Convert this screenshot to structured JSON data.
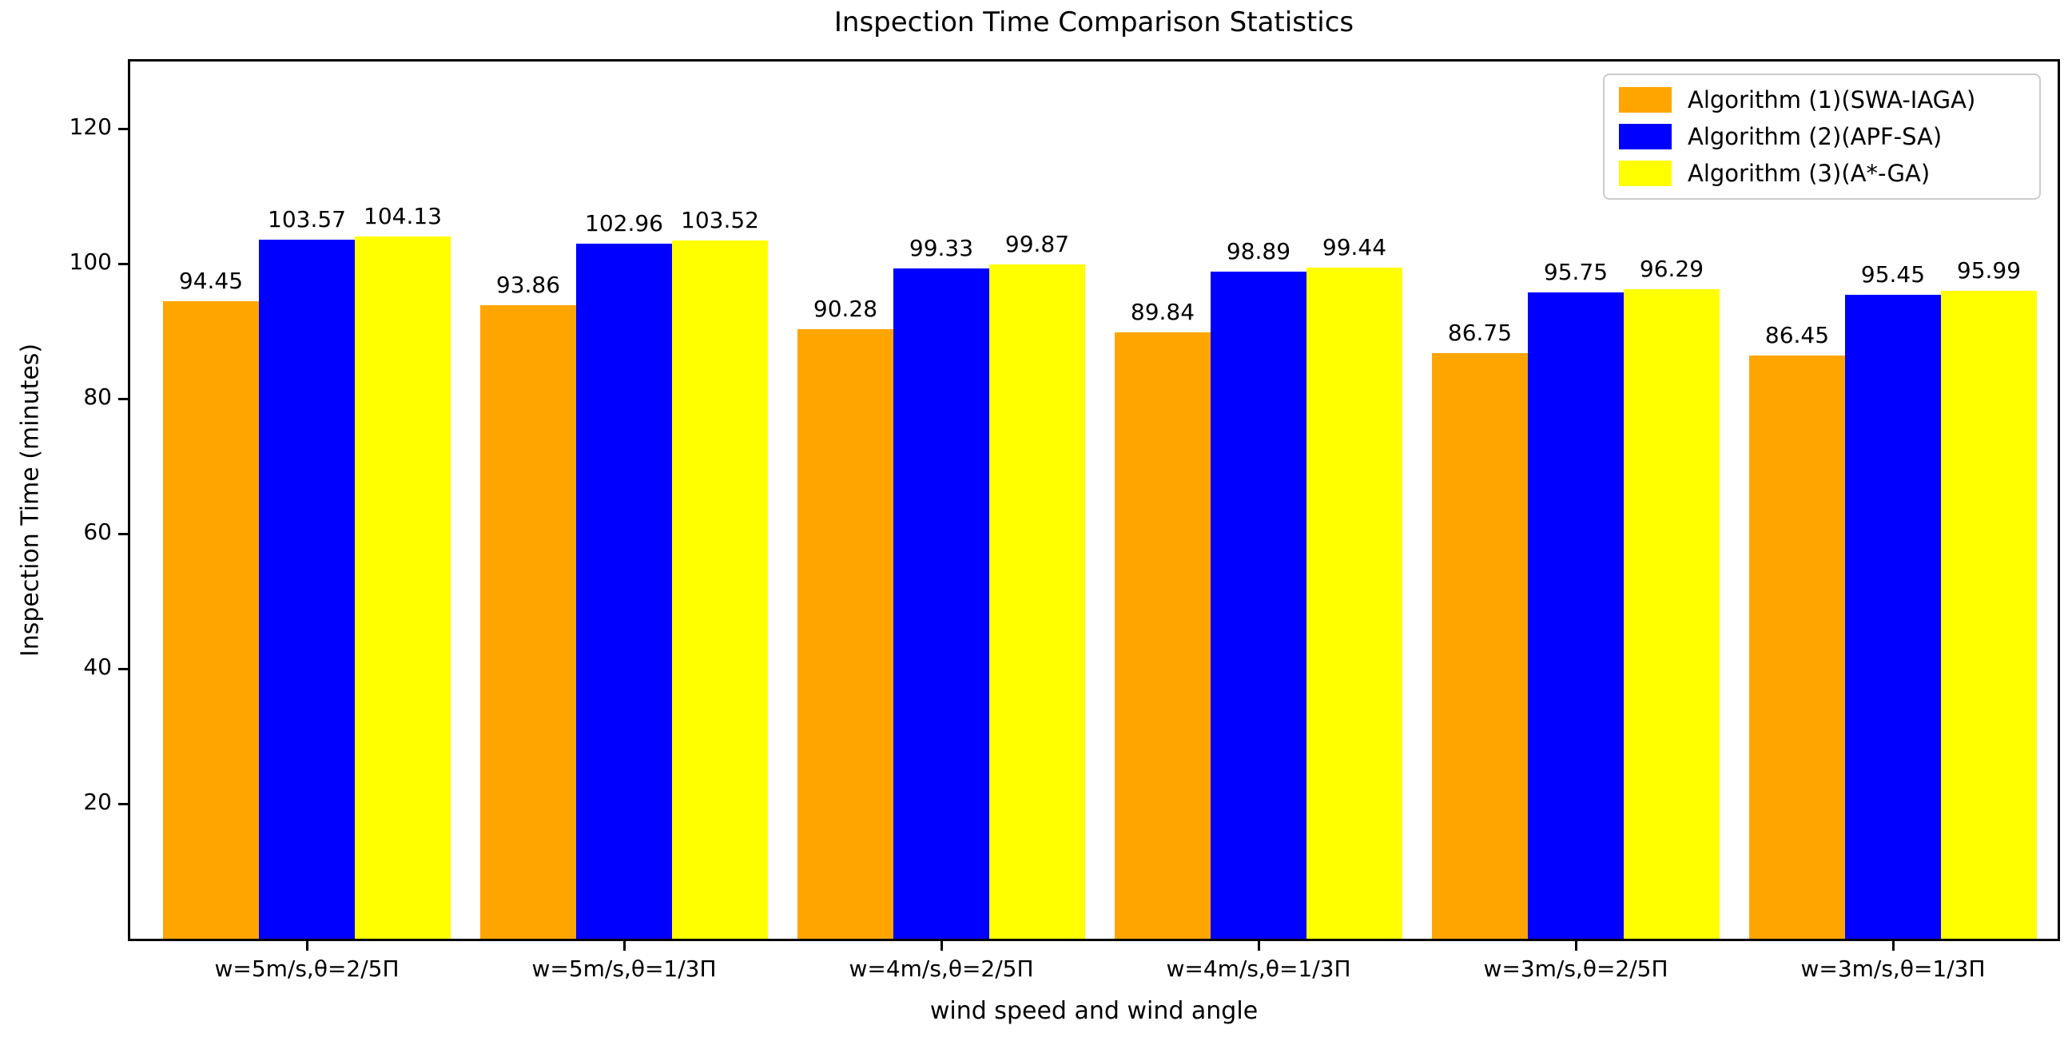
{
  "chart_data": {
    "type": "bar",
    "title": "Inspection Time Comparison Statistics",
    "xlabel": "wind speed and wind angle",
    "ylabel": "Inspection Time (minutes)",
    "categories": [
      "w=5m/s,θ=2/5Π",
      "w=5m/s,θ=1/3Π",
      "w=4m/s,θ=2/5Π",
      "w=4m/s,θ=1/3Π",
      "w=3m/s,θ=2/5Π",
      "w=3m/s,θ=1/3Π"
    ],
    "series": [
      {
        "name": "Algorithm (1)(SWA-IAGA)",
        "color": "#FFA500",
        "values": [
          94.45,
          93.86,
          90.28,
          89.84,
          86.75,
          86.45
        ]
      },
      {
        "name": "Algorithm (2)(APF-SA)",
        "color": "#0000FF",
        "values": [
          103.57,
          102.96,
          99.33,
          98.89,
          95.75,
          95.45
        ]
      },
      {
        "name": "Algorithm (3)(A*-GA)",
        "color": "#FFFF00",
        "values": [
          104.13,
          103.52,
          99.87,
          99.44,
          96.29,
          95.99
        ]
      }
    ],
    "yticks": [
      20,
      40,
      60,
      80,
      100,
      120
    ],
    "ylim": [
      0,
      130
    ],
    "grid": false,
    "legend_position": "upper right",
    "value_labels": true,
    "value_label_decimals": 2,
    "colors": {
      "background": "#ffffff",
      "axis": "#000000",
      "text": "#000000",
      "legend_border": "#cccccc"
    }
  }
}
